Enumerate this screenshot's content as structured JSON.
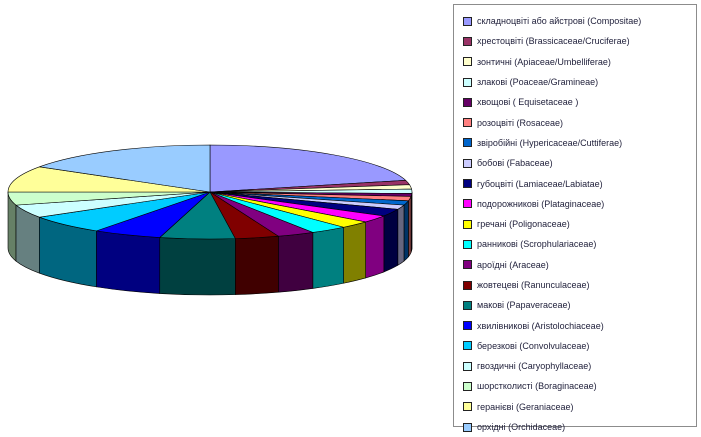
{
  "chart_data": {
    "type": "pie",
    "title": "",
    "three_d": true,
    "legend": "right",
    "categories": [
      "складноцвіті або айстрові (Compositae)",
      "хрестоцвіті (Brassicaceae/Cruciferae)",
      "зонтичні (Apiaceae/Umbelliferae)",
      "злакові (Poaceae/Gramineae)",
      "хвощові ( Equisetaceae )",
      "розоцвіті (Rosaceae)",
      "звіробійні (Hypericaceae/Cuttiferae)",
      "бобові (Fabaceae)",
      "губоцвіті (Lamiaceae/Labiatae)",
      "подорожникові (Plataginaceae)",
      "гречані (Poligonaceae)",
      "ранникові (Scrophulariaceae)",
      "ароїдні (Araceae)",
      "жовтецеві (Ranunculaceae)",
      "макові (Papaveraceae)",
      "хвилівникові (Aristolochiaceae)",
      "березкові (Convolvulaceae)",
      "гвоздичні (Caryophyllaceae)",
      "шорстколисті (Boraginaceae)",
      "геранієві (Geraniaceae)",
      "орхідні (Orchidaceae)"
    ],
    "values": [
      21,
      1.5,
      1.5,
      1.5,
      1,
      1.5,
      1.5,
      1.5,
      2.5,
      2.5,
      2.5,
      3,
      3,
      3.5,
      6,
      5.5,
      6.5,
      4.5,
      4.5,
      9,
      16
    ],
    "colors": [
      "#9999ff",
      "#993366",
      "#ffffcc",
      "#ccffff",
      "#660066",
      "#ff8080",
      "#0066cc",
      "#ccccff",
      "#000080",
      "#ff00ff",
      "#ffff00",
      "#00ffff",
      "#800080",
      "#800000",
      "#008080",
      "#0000ff",
      "#00ccff",
      "#ccffff",
      "#ccffcc",
      "#ffff99",
      "#99ccff"
    ]
  }
}
